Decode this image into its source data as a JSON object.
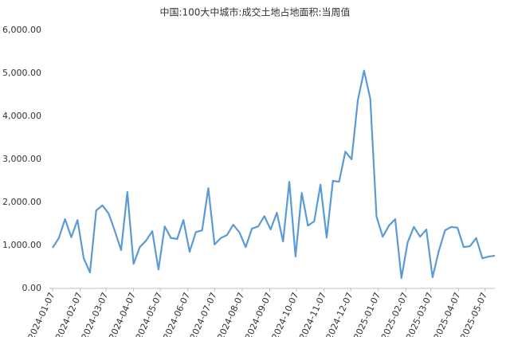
{
  "chart_data": {
    "type": "line",
    "title": "中国:100大中城市:成交土地占地面积:当周值",
    "x": [
      "2024-01-07",
      "2024-01-14",
      "2024-01-21",
      "2024-01-28",
      "2024-02-04",
      "2024-02-11",
      "2024-02-18",
      "2024-02-25",
      "2024-03-03",
      "2024-03-10",
      "2024-03-17",
      "2024-03-24",
      "2024-03-31",
      "2024-04-07",
      "2024-04-14",
      "2024-04-21",
      "2024-04-28",
      "2024-05-05",
      "2024-05-12",
      "2024-05-19",
      "2024-05-26",
      "2024-06-02",
      "2024-06-09",
      "2024-06-16",
      "2024-06-23",
      "2024-06-30",
      "2024-07-07",
      "2024-07-14",
      "2024-07-21",
      "2024-07-28",
      "2024-08-04",
      "2024-08-11",
      "2024-08-18",
      "2024-08-25",
      "2024-09-01",
      "2024-09-08",
      "2024-09-15",
      "2024-09-22",
      "2024-09-29",
      "2024-10-06",
      "2024-10-13",
      "2024-10-20",
      "2024-10-27",
      "2024-11-03",
      "2024-11-10",
      "2024-11-17",
      "2024-11-24",
      "2024-12-01",
      "2024-12-08",
      "2024-12-15",
      "2024-12-22",
      "2024-12-29",
      "2025-01-05",
      "2025-01-12",
      "2025-01-19",
      "2025-01-26",
      "2025-02-02",
      "2025-02-09",
      "2025-02-16",
      "2025-02-23",
      "2025-03-02",
      "2025-03-09",
      "2025-03-16",
      "2025-03-23",
      "2025-03-30",
      "2025-04-06",
      "2025-04-13",
      "2025-04-20",
      "2025-04-27",
      "2025-05-04",
      "2025-05-11",
      "2025-05-18"
    ],
    "series": [
      {
        "color": "#5b9bd5",
        "values": [
          944,
          1170,
          1610,
          1190,
          1590,
          700,
          370,
          1810,
          1930,
          1740,
          1330,
          890,
          2240,
          570,
          960,
          1110,
          1330,
          440,
          1440,
          1170,
          1150,
          1590,
          850,
          1310,
          1350,
          2330,
          1020,
          1170,
          1240,
          1480,
          1300,
          960,
          1390,
          1440,
          1680,
          1370,
          1760,
          1090,
          2480,
          740,
          2220,
          1460,
          1560,
          2410,
          1180,
          2500,
          2480,
          3180,
          3000,
          4370,
          5060,
          4410,
          1670,
          1200,
          1460,
          1610,
          240,
          1070,
          1430,
          1200,
          1370,
          260,
          870,
          1350,
          1430,
          1410,
          960,
          980,
          1170,
          700,
          740,
          760
        ]
      }
    ],
    "xlim": [
      "2024-01-07",
      "2025-05-18"
    ],
    "xticks": [
      "2024-01-07",
      "2024-02-07",
      "2024-03-07",
      "2024-04-07",
      "2024-05-07",
      "2024-06-07",
      "2024-07-07",
      "2024-08-07",
      "2024-09-07",
      "2024-10-07",
      "2024-11-07",
      "2024-12-07",
      "2025-01-07",
      "2025-02-07",
      "2025-03-07",
      "2025-04-07",
      "2025-05-07"
    ],
    "ylim": [
      0,
      6000
    ],
    "yticks": [
      {
        "value": 0,
        "label": "0.00"
      },
      {
        "value": 1000,
        "label": "1,000.00"
      },
      {
        "value": 2000,
        "label": "2,000.00"
      },
      {
        "value": 3000,
        "label": "3,000.00"
      },
      {
        "value": 4000,
        "label": "4,000.00"
      },
      {
        "value": 5000,
        "label": "5,000.00"
      },
      {
        "value": 6000,
        "label": "6,000.00"
      }
    ],
    "grid": false
  }
}
